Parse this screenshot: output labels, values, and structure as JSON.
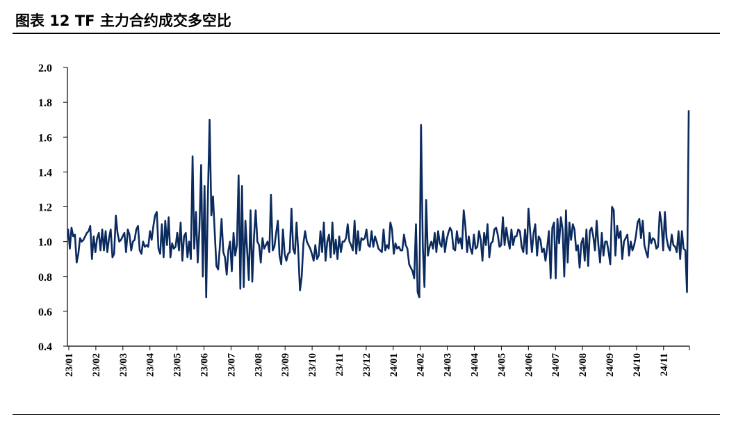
{
  "title": "图表 12 TF 主力合约成交多空比",
  "chart_data": {
    "type": "line",
    "title": "图表 12 TF 主力合约成交多空比",
    "xlabel": "",
    "ylabel": "",
    "ylim": [
      0.4,
      2.0
    ],
    "yticks": [
      "0.4",
      "0.6",
      "0.8",
      "1.0",
      "1.2",
      "1.4",
      "1.6",
      "1.8",
      "2.0"
    ],
    "xticks": [
      "23/01",
      "23/02",
      "23/03",
      "23/04",
      "23/05",
      "23/06",
      "23/07",
      "23/08",
      "23/09",
      "23/10",
      "23/11",
      "23/12",
      "24/01",
      "24/02",
      "24/03",
      "24/04",
      "24/05",
      "24/06",
      "24/07",
      "24/08",
      "24/09",
      "24/10",
      "24/11"
    ],
    "grid": false,
    "legend": "none",
    "line_color": "#0b2a5e",
    "series": [
      {
        "values": [
          1.07,
          0.96,
          1.08,
          1.03,
          1.04,
          0.88,
          0.93,
          1.02,
          1.0,
          1.01,
          1.03,
          1.05,
          1.06,
          1.09,
          0.9,
          1.03,
          0.94,
          1.02,
          1.05,
          0.95,
          1.07,
          0.95,
          1.06,
          0.94,
          1.02,
          1.07,
          0.91,
          0.93,
          1.15,
          1.05,
          1.0,
          1.01,
          1.03,
          1.05,
          0.94,
          1.07,
          1.04,
          0.95,
          1.0,
          1.01,
          1.07,
          1.09,
          0.95,
          0.93,
          1.0,
          0.97,
          0.98,
          0.97,
          1.06,
          1.01,
          1.09,
          1.15,
          1.17,
          0.96,
          0.93,
          1.1,
          0.91,
          1.12,
          0.98,
          1.14,
          0.91,
          0.99,
          0.96,
          0.97,
          1.05,
          0.95,
          1.11,
          0.89,
          1.03,
          1.05,
          0.91,
          1.0,
          0.9,
          1.49,
          0.96,
          1.17,
          0.88,
          1.07,
          1.44,
          0.8,
          1.32,
          0.68,
          1.27,
          1.7,
          1.15,
          1.26,
          1.05,
          0.86,
          0.84,
          0.97,
          1.13,
          0.94,
          0.91,
          0.81,
          0.95,
          1.0,
          0.83,
          1.05,
          0.92,
          0.98,
          1.38,
          0.73,
          1.32,
          0.74,
          1.12,
          0.95,
          0.78,
          1.18,
          0.77,
          1.02,
          1.18,
          1.0,
          0.98,
          0.88,
          1.02,
          0.96,
          0.98,
          1.0,
          0.94,
          1.27,
          0.95,
          0.97,
          1.05,
          1.12,
          0.92,
          0.87,
          1.07,
          0.93,
          0.89,
          0.93,
          0.94,
          1.19,
          0.96,
          0.93,
          1.11,
          0.94,
          0.72,
          0.8,
          0.99,
          1.06,
          1.0,
          0.98,
          0.96,
          0.93,
          0.89,
          0.98,
          0.9,
          0.92,
          1.06,
          0.94,
          1.11,
          0.89,
          1.0,
          1.04,
          0.91,
          1.11,
          0.93,
          1.01,
          0.9,
          1.03,
          0.94,
          1.0,
          1.0,
          1.02,
          1.1,
          1.0,
          0.98,
          0.95,
          1.12,
          0.93,
          1.06,
          0.95,
          1.02,
          1.01,
          1.02,
          1.07,
          0.98,
          0.97,
          1.06,
          0.97,
          1.03,
          1.0,
          0.96,
          0.95,
          0.94,
          1.07,
          0.95,
          0.98,
          0.96,
          1.11,
          1.07,
          0.93,
          0.99,
          0.96,
          0.97,
          0.95,
          0.95,
          1.04,
          0.98,
          0.96,
          0.87,
          0.85,
          0.83,
          0.79,
          1.1,
          0.71,
          0.68,
          1.67,
          0.98,
          0.74,
          1.24,
          0.92,
          0.97,
          1.0,
          0.96,
          1.05,
          0.94,
          1.06,
          0.99,
          0.97,
          1.06,
          0.94,
          1.01,
          1.05,
          1.08,
          1.06,
          0.96,
          0.95,
          1.06,
          0.99,
          1.02,
          0.96,
          1.18,
          1.09,
          0.94,
          1.03,
          0.96,
          0.93,
          1.04,
          0.96,
          0.97,
          1.06,
          1.01,
          0.89,
          1.05,
          0.98,
          1.1,
          0.91,
          0.99,
          1.0,
          1.07,
          1.08,
          1.04,
          0.97,
          0.98,
          1.14,
          0.98,
          1.08,
          1.01,
          0.96,
          1.07,
          0.98,
          1.03,
          1.03,
          1.07,
          1.06,
          0.97,
          0.94,
          1.07,
          0.93,
          1.19,
          1.06,
          0.94,
          1.05,
          1.1,
          0.92,
          1.03,
          1.01,
          0.94,
          0.96,
          0.89,
          0.97,
          1.06,
          0.79,
          1.08,
          1.11,
          0.79,
          1.13,
          0.99,
          1.14,
          1.07,
          0.8,
          1.18,
          0.88,
          1.11,
          1.01,
          1.1,
          1.07,
          0.95,
          0.98,
          0.85,
          0.99,
          1.02,
          0.89,
          1.07,
          0.86,
          1.06,
          1.08,
          1.03,
          0.95,
          1.12,
          0.98,
          0.88,
          1.05,
          0.92,
          1.0,
          1.0,
          0.94,
          0.87,
          1.2,
          1.18,
          0.92,
          1.09,
          1.02,
          1.06,
          0.9,
          1.0,
          1.02,
          1.04,
          0.92,
          1.0,
          0.95,
          0.98,
          1.03,
          1.11,
          1.13,
          1.02,
          1.12,
          0.98,
          0.94,
          0.91,
          1.05,
          0.99,
          1.02,
          1.01,
          0.96,
          0.97,
          1.17,
          1.11,
          0.95,
          1.17,
          1.02,
          0.97,
          0.95,
          1.04,
          0.98,
          0.97,
          0.94,
          1.06,
          0.9,
          1.06,
          0.96,
          0.95,
          0.71,
          1.75
        ]
      }
    ]
  }
}
